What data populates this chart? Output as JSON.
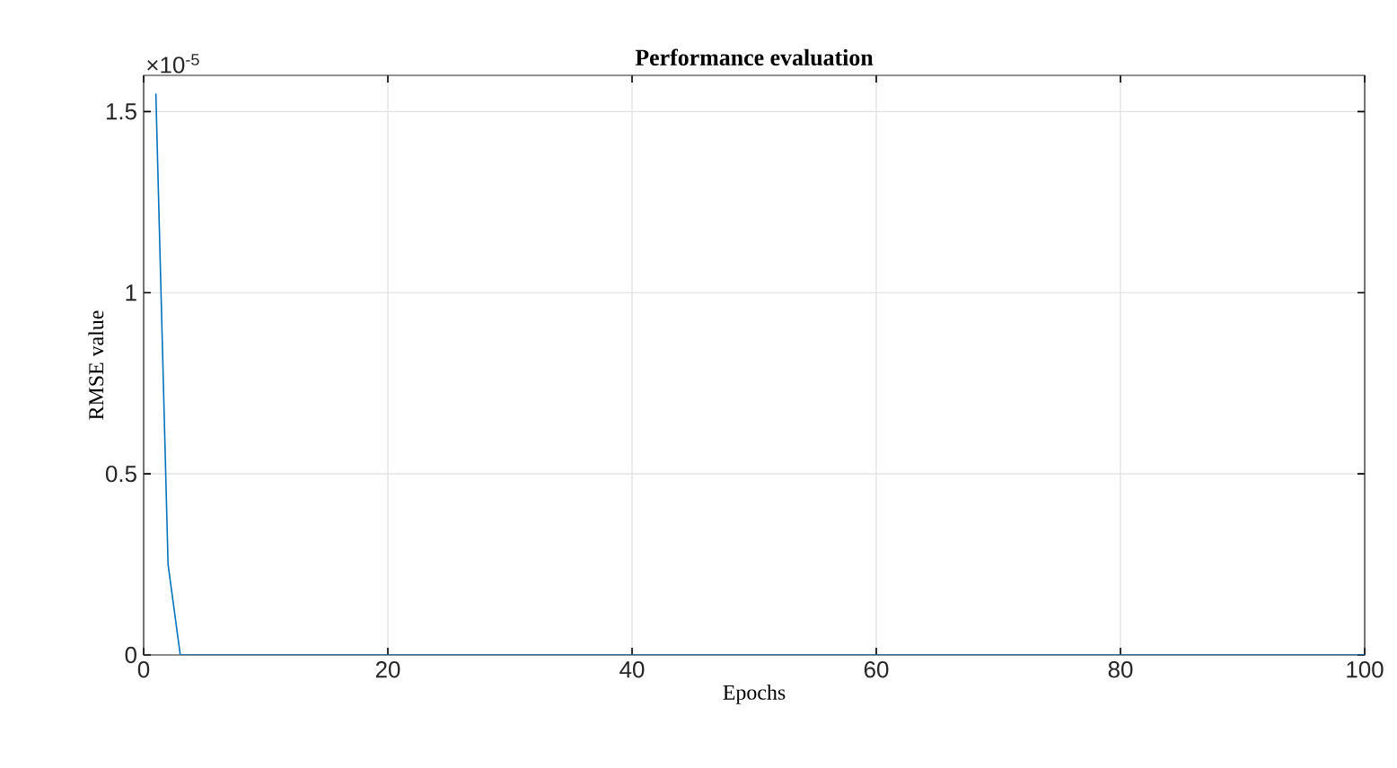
{
  "chart_data": {
    "type": "line",
    "title": "Performance evaluation",
    "xlabel": "Epochs",
    "ylabel": "RMSE value",
    "annotations": [
      "×10$^{-5}$"
    ],
    "x": [
      1,
      2,
      3,
      4,
      5,
      6,
      7,
      8,
      10,
      20,
      30,
      40,
      50,
      60,
      70,
      80,
      90,
      100
    ],
    "series": [
      {
        "color": "#0072bd",
        "values": [
          1.55,
          0.25,
          0,
          0,
          0,
          0,
          0,
          0,
          0,
          0,
          0,
          0,
          0,
          0,
          0,
          0,
          0,
          0
        ]
      }
    ],
    "xlim": [
      0,
      100
    ],
    "xticks": [
      0,
      20,
      40,
      60,
      80,
      100
    ],
    "ylim": [
      0,
      1.6
    ],
    "yticks": [
      0,
      0.5,
      1,
      1.5
    ],
    "grid": true,
    "marker": "none",
    "line_style": "solid"
  }
}
